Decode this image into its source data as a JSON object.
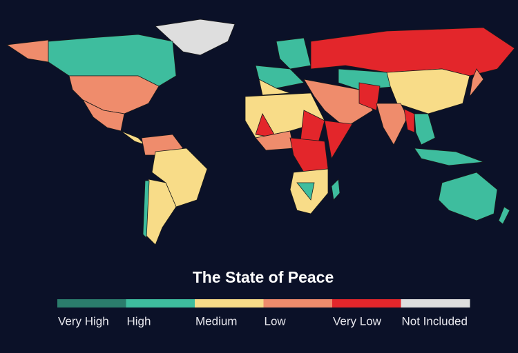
{
  "title": "The State of Peace",
  "legend": [
    {
      "label": "Very High",
      "color": "#2b7d6c"
    },
    {
      "label": "High",
      "color": "#3ebd9e"
    },
    {
      "label": "Medium",
      "color": "#f8dc88"
    },
    {
      "label": "Low",
      "color": "#ef8c6c"
    },
    {
      "label": "Very Low",
      "color": "#e3262b"
    },
    {
      "label": "Not Included",
      "color": "#dedede"
    }
  ]
}
